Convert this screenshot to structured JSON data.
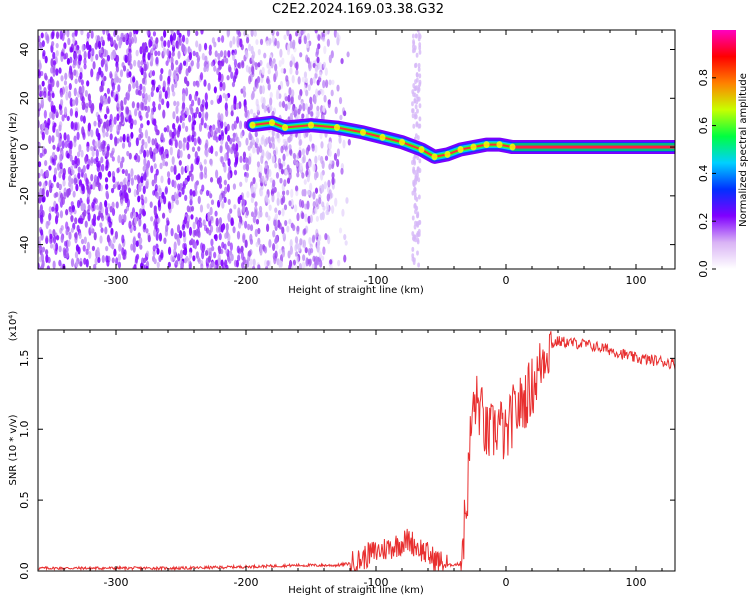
{
  "figure_title": "C2E2.2024.169.03.38.G32",
  "chart_data": [
    {
      "type": "heatmap",
      "xlabel": "Height of straight line (km)",
      "ylabel": "Frequency (Hz)",
      "xlim": [
        -360,
        130
      ],
      "ylim": [
        -50,
        48
      ],
      "xticks": [
        -300,
        -200,
        -100,
        0,
        100
      ],
      "yticks": [
        -40,
        -20,
        0,
        20,
        40
      ],
      "colorbar": {
        "label": "Normalized spectral amplitude",
        "range": [
          0.0,
          1.0
        ],
        "ticks": [
          "0.0",
          "0.2",
          "0.4",
          "0.6",
          "0.8"
        ],
        "colors": [
          "#ffffff",
          "#d9b3f5",
          "#8000ff",
          "#0030ff",
          "#00d0ff",
          "#00ff40",
          "#c8ff00",
          "#ff8000",
          "#ff0000",
          "#ff00c0"
        ]
      },
      "ridge": {
        "description_values": "dominant frequency along height",
        "x": [
          -195,
          -180,
          -170,
          -150,
          -130,
          -110,
          -95,
          -80,
          -65,
          -55,
          -45,
          -35,
          -25,
          -15,
          -5,
          5,
          130
        ],
        "y": [
          9,
          10,
          8,
          9,
          8,
          6,
          4,
          2,
          -1,
          -4,
          -3,
          -1,
          0,
          1,
          1,
          0,
          0
        ]
      }
    },
    {
      "type": "line",
      "xlabel": "Height of straight line (km)",
      "ylabel": "SNR (10 * v/v)",
      "yscale_label": "(x10⁴)",
      "xlim": [
        -360,
        130
      ],
      "ylim": [
        0.0,
        1.7
      ],
      "xticks": [
        -300,
        -200,
        -100,
        0,
        100
      ],
      "yticks": [
        "0.0",
        "0.5",
        "1.0",
        "1.5"
      ],
      "series": [
        {
          "name": "SNR",
          "color": "#e83030",
          "x": [
            -360,
            -300,
            -250,
            -200,
            -160,
            -130,
            -115,
            -105,
            -95,
            -85,
            -75,
            -65,
            -55,
            -45,
            -35,
            -30,
            -27,
            -24,
            -20,
            -15,
            -10,
            -5,
            0,
            5,
            10,
            15,
            20,
            25,
            30,
            35,
            40,
            50,
            60,
            70,
            80,
            90,
            100,
            110,
            120,
            130
          ],
          "y": [
            0.02,
            0.02,
            0.02,
            0.03,
            0.04,
            0.04,
            0.06,
            0.12,
            0.15,
            0.18,
            0.22,
            0.15,
            0.08,
            0.04,
            0.05,
            0.5,
            1.0,
            1.2,
            1.15,
            0.95,
            0.98,
            1.05,
            0.92,
            1.1,
            1.15,
            1.22,
            1.3,
            1.4,
            1.55,
            1.6,
            1.62,
            1.61,
            1.6,
            1.58,
            1.56,
            1.53,
            1.5,
            1.49,
            1.48,
            1.46
          ]
        }
      ]
    }
  ]
}
